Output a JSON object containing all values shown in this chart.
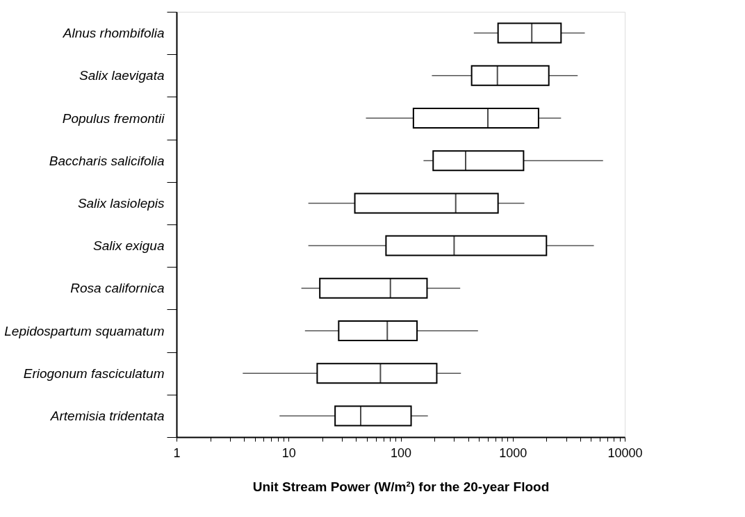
{
  "chart_data": {
    "type": "box",
    "orientation": "horizontal",
    "log": "x",
    "xlabel": "Unit Stream Power (W/m²) for the 20-year Flood",
    "categories": [
      "Alnus rhombifolia",
      "Salix laevigata",
      "Populus fremontii",
      "Baccharis salicifolia",
      "Salix lasiolepis",
      "Salix exigua",
      "Rosa californica",
      "Lepidospartum squamatum",
      "Eriogonum fasciculatum",
      "Artemisia tridentata"
    ],
    "boxes": [
      {
        "low": 450,
        "q1": 740,
        "median": 1480,
        "q3": 2700,
        "high": 4400
      },
      {
        "low": 190,
        "q1": 430,
        "median": 730,
        "q3": 2100,
        "high": 3800
      },
      {
        "low": 49,
        "q1": 130,
        "median": 600,
        "q3": 1700,
        "high": 2700
      },
      {
        "low": 160,
        "q1": 195,
        "median": 380,
        "q3": 1250,
        "high": 6400
      },
      {
        "low": 15,
        "q1": 39,
        "median": 310,
        "q3": 740,
        "high": 1270
      },
      {
        "low": 15,
        "q1": 74,
        "median": 300,
        "q3": 2000,
        "high": 5300
      },
      {
        "low": 13,
        "q1": 19,
        "median": 81,
        "q3": 172,
        "high": 340
      },
      {
        "low": 14,
        "q1": 28,
        "median": 76,
        "q3": 140,
        "high": 490
      },
      {
        "low": 3.9,
        "q1": 18,
        "median": 66,
        "q3": 210,
        "high": 345
      },
      {
        "low": 8.3,
        "q1": 26,
        "median": 44,
        "q3": 124,
        "high": 175
      }
    ],
    "xlim": [
      1,
      10000
    ],
    "xticks": [
      1,
      {
        "value": 2,
        "label": null
      },
      {
        "value": 3,
        "label": null
      },
      {
        "value": 4,
        "label": null
      },
      {
        "value": 5,
        "label": null
      },
      {
        "value": 6,
        "label": null
      },
      {
        "value": 7,
        "label": null
      },
      {
        "value": 8,
        "label": null
      },
      {
        "value": 9,
        "label": null
      },
      10,
      {
        "value": 20,
        "label": null
      },
      {
        "value": 30,
        "label": null
      },
      {
        "value": 40,
        "label": null
      },
      {
        "value": 50,
        "label": null
      },
      {
        "value": 60,
        "label": null
      },
      {
        "value": 70,
        "label": null
      },
      {
        "value": 80,
        "label": null
      },
      {
        "value": 90,
        "label": null
      },
      100,
      {
        "value": 200,
        "label": null
      },
      {
        "value": 300,
        "label": null
      },
      {
        "value": 400,
        "label": null
      },
      {
        "value": 500,
        "label": null
      },
      {
        "value": 600,
        "label": null
      },
      {
        "value": 700,
        "label": null
      },
      {
        "value": 800,
        "label": null
      },
      {
        "value": 900,
        "label": null
      },
      1000,
      {
        "value": 2000,
        "label": null
      },
      {
        "value": 3000,
        "label": null
      },
      {
        "value": 4000,
        "label": null
      },
      {
        "value": 5000,
        "label": null
      },
      {
        "value": 6000,
        "label": null
      },
      {
        "value": 7000,
        "label": null
      },
      {
        "value": 8000,
        "label": null
      },
      {
        "value": 9000,
        "label": null
      },
      10000
    ]
  }
}
